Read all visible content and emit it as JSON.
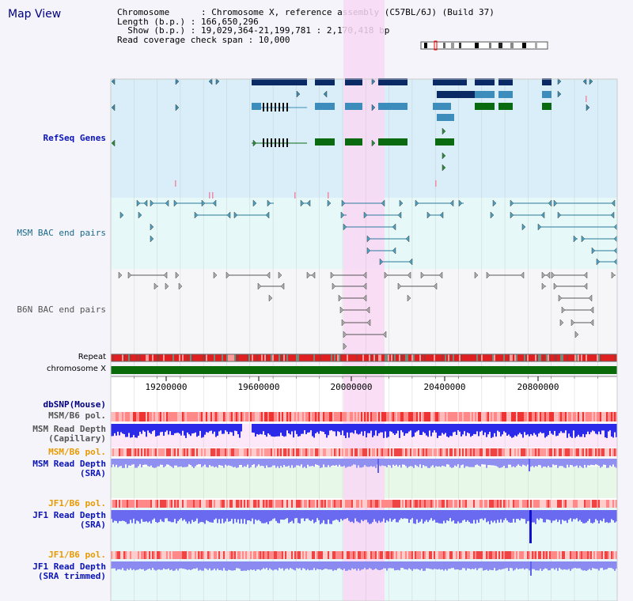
{
  "title": "Map View",
  "info": {
    "chromosome_line": "Chromosome      : Chromosome X, reference assembly (C57BL/6J) (Build 37)",
    "length_line": "Length (b.p.) : 166,650,296",
    "show_line": "  Show (b.p.) : 19,029,364-21,199,781 : 2,170,418 bp",
    "span_line": "Read coverage check span : 10,000"
  },
  "tracks": {
    "refseq": "RefSeq Genes",
    "msm_bac": "MSM BAC end pairs",
    "b6n_bac": "B6N BAC end pairs",
    "repeat": "Repeat",
    "chromosome": "chromosome X",
    "dbsnp": "dbSNP(Mouse)",
    "msm_b6_pol_1": "MSM/B6 pol.",
    "msm_read_depth_cap_1": "MSM Read Depth",
    "msm_read_depth_cap_2": "(Capillary)",
    "msm_b6_pol_2": "MSM/B6 pol.",
    "msm_read_depth_sra_1": "MSM Read Depth",
    "msm_read_depth_sra_2": "(SRA)",
    "jf1_b6_pol_1": "JF1/B6 pol.",
    "jf1_read_depth_sra_1": "JF1 Read Depth",
    "jf1_read_depth_sra_2": "(SRA)",
    "jf1_b6_pol_2": "JF1/B6 pol.",
    "jf1_read_depth_trim_1": "JF1 Read Depth",
    "jf1_read_depth_trim_2": "(SRA trimmed)"
  },
  "axis": {
    "ticks": [
      "19200000",
      "19600000",
      "20000000",
      "20400000",
      "20800000"
    ]
  },
  "colors": {
    "highlight": "#f8d8f4",
    "gene_dark": "#0a2a66",
    "gene_mid": "#3c8cbc",
    "gene_green": "#0a6a10",
    "bac_msm": "#2a7a9a",
    "bac_b6n": "#777777",
    "repeat": "#e02020",
    "chromosome": "#0a6a0a",
    "depth": "#3a3af0"
  }
}
